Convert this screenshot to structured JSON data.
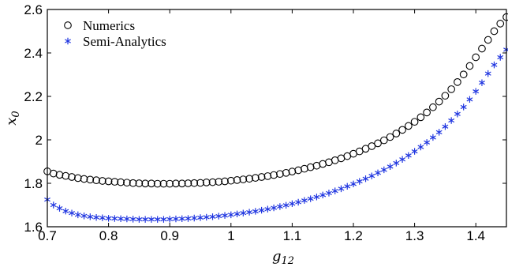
{
  "chart_data": {
    "type": "scatter",
    "xlabel": "g",
    "xlabel_sub": "12",
    "ylabel": "x",
    "ylabel_sub": "0",
    "xlim": [
      0.7,
      1.45
    ],
    "ylim": [
      1.6,
      2.6
    ],
    "x_ticks": [
      0.7,
      0.8,
      0.9,
      1.0,
      1.1,
      1.2,
      1.3,
      1.4
    ],
    "x_tick_labels": [
      "0.7",
      "0.8",
      "0.9",
      "1",
      "1.1",
      "1.2",
      "1.3",
      "1.4"
    ],
    "y_ticks": [
      1.6,
      1.8,
      2.0,
      2.2,
      2.4,
      2.6
    ],
    "y_tick_labels": [
      "1.6",
      "1.8",
      "2",
      "2.2",
      "2.4",
      "2.6"
    ],
    "grid": false,
    "legend_position": "top-left",
    "series": [
      {
        "name": "Numerics",
        "marker": "open-circle",
        "color": "#000000",
        "x": [
          0.7,
          0.71,
          0.72,
          0.73,
          0.74,
          0.75,
          0.76,
          0.77,
          0.78,
          0.79,
          0.8,
          0.81,
          0.82,
          0.83,
          0.84,
          0.85,
          0.86,
          0.87,
          0.88,
          0.89,
          0.9,
          0.91,
          0.92,
          0.93,
          0.94,
          0.95,
          0.96,
          0.97,
          0.98,
          0.99,
          1.0,
          1.01,
          1.02,
          1.03,
          1.04,
          1.05,
          1.06,
          1.07,
          1.08,
          1.09,
          1.1,
          1.11,
          1.12,
          1.13,
          1.14,
          1.15,
          1.16,
          1.17,
          1.18,
          1.19,
          1.2,
          1.21,
          1.22,
          1.23,
          1.24,
          1.25,
          1.26,
          1.27,
          1.28,
          1.29,
          1.3,
          1.31,
          1.32,
          1.33,
          1.34,
          1.35,
          1.36,
          1.37,
          1.38,
          1.39,
          1.4,
          1.41,
          1.42,
          1.43,
          1.44,
          1.45
        ],
        "y": [
          1.855,
          1.845,
          1.839,
          1.834,
          1.829,
          1.824,
          1.82,
          1.817,
          1.814,
          1.811,
          1.809,
          1.807,
          1.805,
          1.803,
          1.801,
          1.8,
          1.799,
          1.799,
          1.798,
          1.798,
          1.798,
          1.799,
          1.799,
          1.8,
          1.801,
          1.802,
          1.804,
          1.805,
          1.807,
          1.809,
          1.812,
          1.815,
          1.818,
          1.821,
          1.825,
          1.829,
          1.833,
          1.838,
          1.843,
          1.848,
          1.854,
          1.86,
          1.867,
          1.874,
          1.881,
          1.889,
          1.897,
          1.906,
          1.915,
          1.925,
          1.936,
          1.947,
          1.959,
          1.971,
          1.984,
          1.998,
          2.013,
          2.029,
          2.046,
          2.064,
          2.083,
          2.104,
          2.126,
          2.15,
          2.176,
          2.203,
          2.233,
          2.266,
          2.301,
          2.34,
          2.38,
          2.42,
          2.46,
          2.5,
          2.535,
          2.565
        ]
      },
      {
        "name": "Semi-Analytics",
        "marker": "asterisk",
        "color": "#1f35e0",
        "x": [
          0.7,
          0.71,
          0.72,
          0.73,
          0.74,
          0.75,
          0.76,
          0.77,
          0.78,
          0.79,
          0.8,
          0.81,
          0.82,
          0.83,
          0.84,
          0.85,
          0.86,
          0.87,
          0.88,
          0.89,
          0.9,
          0.91,
          0.92,
          0.93,
          0.94,
          0.95,
          0.96,
          0.97,
          0.98,
          0.99,
          1.0,
          1.01,
          1.02,
          1.03,
          1.04,
          1.05,
          1.06,
          1.07,
          1.08,
          1.09,
          1.1,
          1.11,
          1.12,
          1.13,
          1.14,
          1.15,
          1.16,
          1.17,
          1.18,
          1.19,
          1.2,
          1.21,
          1.22,
          1.23,
          1.24,
          1.25,
          1.26,
          1.27,
          1.28,
          1.29,
          1.3,
          1.31,
          1.32,
          1.33,
          1.34,
          1.35,
          1.36,
          1.37,
          1.38,
          1.39,
          1.4,
          1.41,
          1.42,
          1.43,
          1.44,
          1.45
        ],
        "y": [
          1.725,
          1.7,
          1.685,
          1.672,
          1.663,
          1.655,
          1.65,
          1.646,
          1.643,
          1.641,
          1.639,
          1.638,
          1.637,
          1.636,
          1.635,
          1.634,
          1.634,
          1.634,
          1.634,
          1.634,
          1.635,
          1.636,
          1.637,
          1.638,
          1.64,
          1.642,
          1.644,
          1.646,
          1.649,
          1.652,
          1.655,
          1.659,
          1.663,
          1.667,
          1.671,
          1.676,
          1.681,
          1.687,
          1.693,
          1.699,
          1.706,
          1.713,
          1.721,
          1.729,
          1.737,
          1.746,
          1.755,
          1.765,
          1.775,
          1.786,
          1.797,
          1.809,
          1.821,
          1.834,
          1.848,
          1.862,
          1.877,
          1.893,
          1.91,
          1.928,
          1.947,
          1.967,
          1.988,
          2.011,
          2.035,
          2.061,
          2.089,
          2.119,
          2.151,
          2.186,
          2.223,
          2.263,
          2.305,
          2.345,
          2.38,
          2.415
        ]
      }
    ]
  }
}
